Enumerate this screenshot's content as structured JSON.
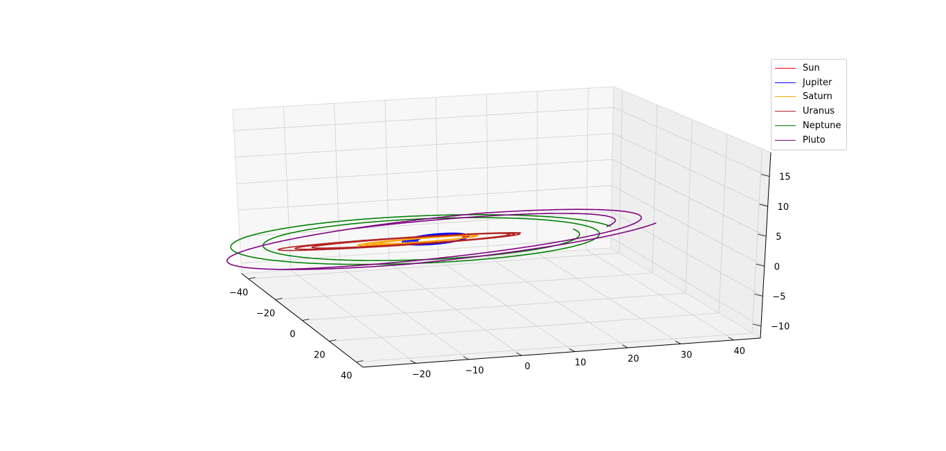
{
  "chart_data": {
    "type": "line",
    "projection": "3d",
    "title": "",
    "xlabel": "",
    "ylabel": "",
    "zlabel": "",
    "xlim": [
      -30,
      45
    ],
    "ylim": [
      -45,
      45
    ],
    "zlim": [
      -12,
      19
    ],
    "x_ticks": [
      "−20",
      "−10",
      "0",
      "10",
      "20",
      "30",
      "40"
    ],
    "y_ticks": [
      "−40",
      "−20",
      "0",
      "20",
      "40"
    ],
    "z_ticks": [
      "−10",
      "−5",
      "0",
      "5",
      "10",
      "15"
    ],
    "grid": true,
    "legend_position": "top-right",
    "series": [
      {
        "name": "Sun",
        "color": "#ff0000",
        "a": 0.3,
        "e": 0.5,
        "incl": 0,
        "phase_start": 0,
        "phase_end": 1
      },
      {
        "name": "Jupiter",
        "color": "#0000ff",
        "a": 5.2,
        "e": 0.9,
        "incl": 30,
        "phase_start": 0,
        "phase_end": 10
      },
      {
        "name": "Saturn",
        "color": "#ffa500",
        "a": 9.5,
        "e": 0.8,
        "incl": 15,
        "phase_start": 0,
        "phase_end": 4
      },
      {
        "name": "Uranus",
        "color": "#b22222",
        "a": 19.2,
        "e": 0.55,
        "incl": 10,
        "phase_start": 0,
        "phase_end": 3
      },
      {
        "name": "Neptune",
        "color": "#008000",
        "a": 30.1,
        "e": 0.25,
        "incl": 5,
        "phase_start": 0,
        "phase_end": 2
      },
      {
        "name": "Pluto",
        "color": "#800080",
        "a": 39.5,
        "e": 0.25,
        "incl": 17,
        "phase_start": 0,
        "phase_end": 2
      }
    ]
  }
}
